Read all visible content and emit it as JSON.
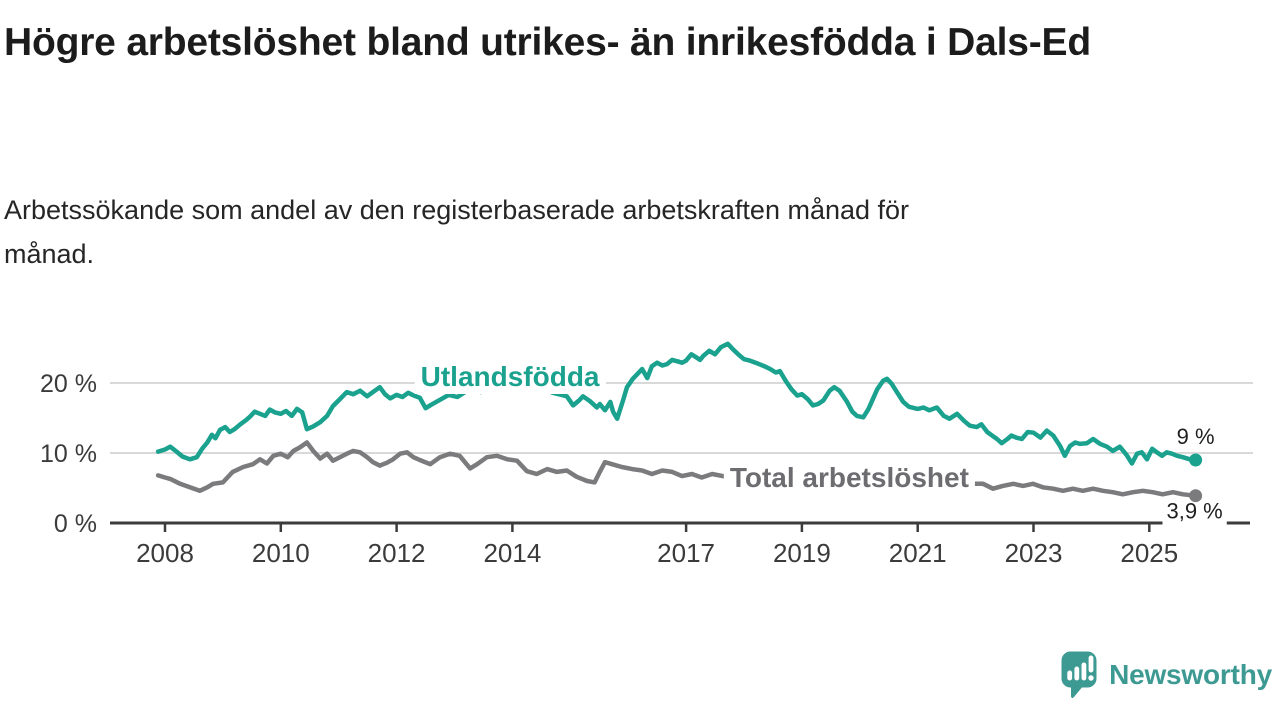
{
  "header": {
    "title": "Högre arbetslöshet bland utrikes- än inrikesfödda i Dals-Ed",
    "subtitle_lines": [
      "Arbetssökande som andel av den registerbaserade arbetskraften månad för",
      "månad."
    ]
  },
  "branding": {
    "wordmark": "Newsworthy",
    "logo_color": "#3d9a93"
  },
  "chart_data": {
    "type": "line",
    "title": "Högre arbetslöshet bland utrikes- än inrikesfödda i Dals-Ed",
    "subtitle": "Arbetssökande som andel av den registerbaserade arbetskraften månad för månad.",
    "unit": "%",
    "grid_color": "#d9d9d9",
    "axis_color": "#3b3b3b",
    "axis_text_color": "#3b3b3b",
    "value_label_color": "#1f1f1f",
    "x_axis": {
      "range": [
        2007.85,
        2026.6
      ],
      "tick_values": [
        2008,
        2010,
        2012,
        2014,
        2017,
        2019,
        2021,
        2023,
        2025
      ],
      "tick_labels": [
        "2008",
        "2010",
        "2012",
        "2014",
        "2017",
        "2019",
        "2021",
        "2023",
        "2025"
      ]
    },
    "y_axis": {
      "range": [
        0,
        27
      ],
      "tick_values": [
        0,
        10,
        20
      ],
      "tick_labels": [
        "0 %",
        "10 %",
        "20 %"
      ],
      "gridlines": [
        10,
        20
      ]
    },
    "series": [
      {
        "id": "utlandsfodda",
        "name": "Utlandsfödda",
        "color": "#1aa28f",
        "line_width": 4.5,
        "label": {
          "text": "Utlandsfödda",
          "year": 2013.96,
          "value": 21.0
        },
        "end": {
          "label": "9 %",
          "dx": 0,
          "dy": -16,
          "halo": false
        },
        "points": [
          [
            2007.88,
            10.2
          ],
          [
            2008.0,
            10.5
          ],
          [
            2008.09,
            10.9
          ],
          [
            2008.2,
            10.2
          ],
          [
            2008.3,
            9.5
          ],
          [
            2008.43,
            9.1
          ],
          [
            2008.55,
            9.4
          ],
          [
            2008.64,
            10.6
          ],
          [
            2008.73,
            11.5
          ],
          [
            2008.81,
            12.6
          ],
          [
            2008.87,
            12.1
          ],
          [
            2008.95,
            13.3
          ],
          [
            2009.04,
            13.7
          ],
          [
            2009.12,
            13.0
          ],
          [
            2009.2,
            13.4
          ],
          [
            2009.3,
            14.1
          ],
          [
            2009.4,
            14.7
          ],
          [
            2009.47,
            15.2
          ],
          [
            2009.55,
            15.9
          ],
          [
            2009.64,
            15.6
          ],
          [
            2009.73,
            15.3
          ],
          [
            2009.81,
            16.2
          ],
          [
            2009.9,
            15.8
          ],
          [
            2010.0,
            15.6
          ],
          [
            2010.09,
            16.0
          ],
          [
            2010.19,
            15.3
          ],
          [
            2010.28,
            16.3
          ],
          [
            2010.37,
            15.8
          ],
          [
            2010.45,
            13.4
          ],
          [
            2010.56,
            13.8
          ],
          [
            2010.68,
            14.4
          ],
          [
            2010.8,
            15.3
          ],
          [
            2010.9,
            16.7
          ],
          [
            2011.02,
            17.7
          ],
          [
            2011.14,
            18.7
          ],
          [
            2011.25,
            18.4
          ],
          [
            2011.37,
            18.9
          ],
          [
            2011.49,
            18.1
          ],
          [
            2011.59,
            18.7
          ],
          [
            2011.71,
            19.4
          ],
          [
            2011.8,
            18.4
          ],
          [
            2011.89,
            17.8
          ],
          [
            2012.0,
            18.3
          ],
          [
            2012.1,
            18.0
          ],
          [
            2012.2,
            18.6
          ],
          [
            2012.3,
            18.2
          ],
          [
            2012.4,
            17.9
          ],
          [
            2012.5,
            16.4
          ],
          [
            2012.6,
            16.9
          ],
          [
            2012.75,
            17.6
          ],
          [
            2012.9,
            18.3
          ],
          [
            2013.05,
            18.0
          ],
          [
            2013.2,
            18.8
          ],
          [
            2013.35,
            19.2
          ],
          [
            2013.45,
            18.7
          ],
          [
            2013.6,
            19.3
          ],
          [
            2013.75,
            19.0
          ],
          [
            2013.9,
            19.4
          ],
          [
            2014.05,
            18.9
          ],
          [
            2014.2,
            19.3
          ],
          [
            2014.39,
            18.9
          ],
          [
            2014.55,
            19.2
          ],
          [
            2014.7,
            18.6
          ],
          [
            2014.85,
            18.3
          ],
          [
            2014.94,
            18.1
          ],
          [
            2015.05,
            16.8
          ],
          [
            2015.15,
            17.5
          ],
          [
            2015.22,
            18.1
          ],
          [
            2015.34,
            17.4
          ],
          [
            2015.46,
            16.5
          ],
          [
            2015.51,
            17.0
          ],
          [
            2015.6,
            16.1
          ],
          [
            2015.69,
            17.3
          ],
          [
            2015.74,
            15.9
          ],
          [
            2015.81,
            14.9
          ],
          [
            2015.91,
            17.5
          ],
          [
            2015.98,
            19.4
          ],
          [
            2016.08,
            20.6
          ],
          [
            2016.16,
            21.3
          ],
          [
            2016.24,
            22.0
          ],
          [
            2016.33,
            20.7
          ],
          [
            2016.41,
            22.4
          ],
          [
            2016.5,
            22.9
          ],
          [
            2016.59,
            22.5
          ],
          [
            2016.67,
            22.7
          ],
          [
            2016.76,
            23.3
          ],
          [
            2016.85,
            23.1
          ],
          [
            2016.93,
            22.9
          ],
          [
            2017.0,
            23.2
          ],
          [
            2017.09,
            24.1
          ],
          [
            2017.17,
            23.7
          ],
          [
            2017.24,
            23.3
          ],
          [
            2017.3,
            23.9
          ],
          [
            2017.4,
            24.6
          ],
          [
            2017.5,
            24.1
          ],
          [
            2017.6,
            25.1
          ],
          [
            2017.72,
            25.6
          ],
          [
            2017.8,
            24.9
          ],
          [
            2017.9,
            24.1
          ],
          [
            2018.0,
            23.4
          ],
          [
            2018.1,
            23.2
          ],
          [
            2018.2,
            22.9
          ],
          [
            2018.35,
            22.4
          ],
          [
            2018.45,
            22.0
          ],
          [
            2018.55,
            21.5
          ],
          [
            2018.62,
            21.7
          ],
          [
            2018.72,
            20.3
          ],
          [
            2018.82,
            19.1
          ],
          [
            2018.92,
            18.2
          ],
          [
            2019.0,
            18.4
          ],
          [
            2019.1,
            17.7
          ],
          [
            2019.19,
            16.8
          ],
          [
            2019.28,
            17.0
          ],
          [
            2019.37,
            17.5
          ],
          [
            2019.48,
            18.9
          ],
          [
            2019.56,
            19.4
          ],
          [
            2019.65,
            18.9
          ],
          [
            2019.78,
            17.3
          ],
          [
            2019.87,
            15.9
          ],
          [
            2019.95,
            15.3
          ],
          [
            2020.06,
            15.1
          ],
          [
            2020.15,
            16.3
          ],
          [
            2020.3,
            19.1
          ],
          [
            2020.4,
            20.3
          ],
          [
            2020.47,
            20.6
          ],
          [
            2020.55,
            19.9
          ],
          [
            2020.64,
            18.7
          ],
          [
            2020.75,
            17.3
          ],
          [
            2020.85,
            16.6
          ],
          [
            2021.0,
            16.3
          ],
          [
            2021.1,
            16.5
          ],
          [
            2021.2,
            16.1
          ],
          [
            2021.33,
            16.5
          ],
          [
            2021.45,
            15.3
          ],
          [
            2021.55,
            14.9
          ],
          [
            2021.68,
            15.6
          ],
          [
            2021.8,
            14.6
          ],
          [
            2021.9,
            13.9
          ],
          [
            2022.02,
            13.7
          ],
          [
            2022.1,
            14.1
          ],
          [
            2022.2,
            13.0
          ],
          [
            2022.3,
            12.4
          ],
          [
            2022.37,
            12.0
          ],
          [
            2022.45,
            11.4
          ],
          [
            2022.55,
            12.0
          ],
          [
            2022.62,
            12.5
          ],
          [
            2022.7,
            12.2
          ],
          [
            2022.8,
            12.0
          ],
          [
            2022.9,
            13.0
          ],
          [
            2023.0,
            12.9
          ],
          [
            2023.12,
            12.2
          ],
          [
            2023.23,
            13.2
          ],
          [
            2023.34,
            12.5
          ],
          [
            2023.46,
            11.0
          ],
          [
            2023.54,
            9.6
          ],
          [
            2023.63,
            11.0
          ],
          [
            2023.72,
            11.5
          ],
          [
            2023.8,
            11.3
          ],
          [
            2023.92,
            11.4
          ],
          [
            2024.03,
            12.0
          ],
          [
            2024.15,
            11.3
          ],
          [
            2024.27,
            10.9
          ],
          [
            2024.37,
            10.3
          ],
          [
            2024.49,
            10.9
          ],
          [
            2024.61,
            9.7
          ],
          [
            2024.7,
            8.5
          ],
          [
            2024.79,
            9.9
          ],
          [
            2024.87,
            10.1
          ],
          [
            2024.96,
            9.1
          ],
          [
            2025.05,
            10.6
          ],
          [
            2025.13,
            10.1
          ],
          [
            2025.22,
            9.6
          ],
          [
            2025.3,
            10.1
          ],
          [
            2025.39,
            9.9
          ],
          [
            2025.48,
            9.6
          ],
          [
            2025.58,
            9.4
          ],
          [
            2025.7,
            9.1
          ],
          [
            2025.8,
            9.0
          ]
        ]
      },
      {
        "id": "total",
        "name": "Total arbetslöshet",
        "color": "#7b7b7e",
        "label_color": "#6d6d71",
        "line_width": 4.5,
        "label": {
          "text": "Total arbetslöshet",
          "year": 2019.82,
          "value": 6.6
        },
        "end": {
          "label": "3,9 %",
          "dx": -1,
          "dy": 23,
          "halo": true
        },
        "points": [
          [
            2007.88,
            6.8
          ],
          [
            2008.0,
            6.5
          ],
          [
            2008.09,
            6.3
          ],
          [
            2008.26,
            5.6
          ],
          [
            2008.43,
            5.1
          ],
          [
            2008.6,
            4.6
          ],
          [
            2008.73,
            5.1
          ],
          [
            2008.83,
            5.6
          ],
          [
            2009.0,
            5.8
          ],
          [
            2009.17,
            7.3
          ],
          [
            2009.35,
            8.0
          ],
          [
            2009.52,
            8.4
          ],
          [
            2009.64,
            9.1
          ],
          [
            2009.76,
            8.5
          ],
          [
            2009.87,
            9.6
          ],
          [
            2010.0,
            9.9
          ],
          [
            2010.12,
            9.4
          ],
          [
            2010.22,
            10.3
          ],
          [
            2010.33,
            10.8
          ],
          [
            2010.45,
            11.5
          ],
          [
            2010.56,
            10.3
          ],
          [
            2010.68,
            9.2
          ],
          [
            2010.8,
            9.9
          ],
          [
            2010.9,
            8.9
          ],
          [
            2011.02,
            9.4
          ],
          [
            2011.14,
            9.9
          ],
          [
            2011.25,
            10.3
          ],
          [
            2011.37,
            10.1
          ],
          [
            2011.49,
            9.4
          ],
          [
            2011.59,
            8.7
          ],
          [
            2011.71,
            8.2
          ],
          [
            2011.83,
            8.6
          ],
          [
            2011.94,
            9.1
          ],
          [
            2012.06,
            9.9
          ],
          [
            2012.18,
            10.1
          ],
          [
            2012.29,
            9.4
          ],
          [
            2012.4,
            9.0
          ],
          [
            2012.58,
            8.4
          ],
          [
            2012.75,
            9.4
          ],
          [
            2012.92,
            9.9
          ],
          [
            2013.09,
            9.6
          ],
          [
            2013.27,
            7.8
          ],
          [
            2013.39,
            8.4
          ],
          [
            2013.56,
            9.4
          ],
          [
            2013.73,
            9.6
          ],
          [
            2013.91,
            9.1
          ],
          [
            2014.08,
            8.9
          ],
          [
            2014.25,
            7.4
          ],
          [
            2014.42,
            7.0
          ],
          [
            2014.6,
            7.7
          ],
          [
            2014.77,
            7.3
          ],
          [
            2014.94,
            7.5
          ],
          [
            2015.11,
            6.6
          ],
          [
            2015.29,
            6.0
          ],
          [
            2015.42,
            5.8
          ],
          [
            2015.51,
            7.3
          ],
          [
            2015.6,
            8.7
          ],
          [
            2015.72,
            8.4
          ],
          [
            2015.89,
            8.0
          ],
          [
            2016.07,
            7.7
          ],
          [
            2016.24,
            7.5
          ],
          [
            2016.41,
            7.0
          ],
          [
            2016.59,
            7.5
          ],
          [
            2016.76,
            7.3
          ],
          [
            2016.93,
            6.7
          ],
          [
            2017.1,
            7.0
          ],
          [
            2017.27,
            6.5
          ],
          [
            2017.45,
            7.0
          ],
          [
            2017.7,
            6.6
          ],
          [
            2018.0,
            6.3
          ],
          [
            2018.3,
            6.0
          ],
          [
            2018.6,
            6.2
          ],
          [
            2018.9,
            5.8
          ],
          [
            2019.2,
            5.6
          ],
          [
            2019.5,
            5.9
          ],
          [
            2019.8,
            6.1
          ],
          [
            2020.1,
            6.6
          ],
          [
            2020.4,
            7.4
          ],
          [
            2020.7,
            7.1
          ],
          [
            2021.0,
            6.7
          ],
          [
            2021.3,
            6.3
          ],
          [
            2021.6,
            5.9
          ],
          [
            2021.9,
            5.6
          ],
          [
            2022.13,
            5.6
          ],
          [
            2022.3,
            4.9
          ],
          [
            2022.47,
            5.3
          ],
          [
            2022.65,
            5.6
          ],
          [
            2022.82,
            5.3
          ],
          [
            2022.99,
            5.6
          ],
          [
            2023.16,
            5.1
          ],
          [
            2023.34,
            4.9
          ],
          [
            2023.51,
            4.6
          ],
          [
            2023.68,
            4.9
          ],
          [
            2023.85,
            4.6
          ],
          [
            2024.03,
            4.9
          ],
          [
            2024.2,
            4.6
          ],
          [
            2024.37,
            4.4
          ],
          [
            2024.54,
            4.1
          ],
          [
            2024.72,
            4.4
          ],
          [
            2024.89,
            4.6
          ],
          [
            2025.06,
            4.4
          ],
          [
            2025.23,
            4.1
          ],
          [
            2025.41,
            4.4
          ],
          [
            2025.58,
            4.1
          ],
          [
            2025.8,
            3.9
          ]
        ]
      }
    ]
  }
}
